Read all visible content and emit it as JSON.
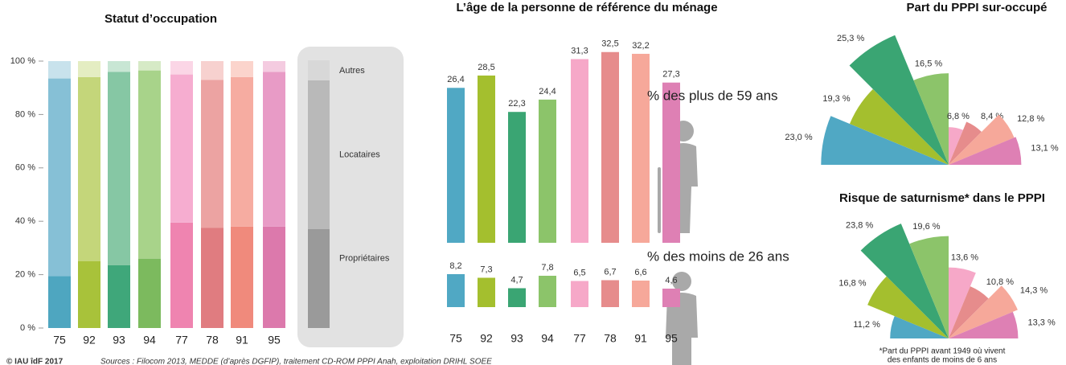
{
  "chart_data": [
    {
      "type": "stacked_bar",
      "title": "Statut d’occupation",
      "categories": [
        "75",
        "92",
        "93",
        "94",
        "77",
        "78",
        "91",
        "95"
      ],
      "ylim": [
        0,
        100
      ],
      "yticks": [
        {
          "value": 0,
          "label": "0 %"
        },
        {
          "value": 20,
          "label": "20 %"
        },
        {
          "value": 40,
          "label": "40 %"
        },
        {
          "value": 60,
          "label": "60 %"
        },
        {
          "value": 80,
          "label": "80 %"
        },
        {
          "value": 100,
          "label": "100 %"
        }
      ],
      "series": [
        {
          "name": "Propriétaires",
          "color": "#9a9a9a",
          "values": [
            19.5,
            25,
            23.5,
            26,
            39.5,
            37.5,
            38,
            38
          ],
          "colors": [
            "#4ea6c0",
            "#a8c23a",
            "#3fa77a",
            "#7cba5e",
            "#ef84b0",
            "#e07c80",
            "#f08a7c",
            "#dc79ac"
          ]
        },
        {
          "name": "Locataires",
          "color": "#b9b9b9",
          "values": [
            74,
            69,
            72.5,
            70.5,
            55.5,
            55.5,
            56,
            58
          ],
          "colors": [
            "#86c0d6",
            "#c4d67a",
            "#86c7a4",
            "#a8d38a",
            "#f6add0",
            "#eca3a2",
            "#f6aca1",
            "#e89bc6"
          ]
        },
        {
          "name": "Autres",
          "color": "#d8d8d8",
          "values": [
            6.5,
            6,
            4,
            3.5,
            5,
            7,
            6,
            4
          ],
          "colors": [
            "#c8e2ec",
            "#e4edc2",
            "#c8e6d4",
            "#d6eac6",
            "#fbd6e6",
            "#f7d1cf",
            "#fbd4cc",
            "#f4cbe0"
          ]
        }
      ]
    },
    {
      "type": "bar",
      "title": "L’âge de la personne de référence du ménage",
      "categories": [
        "75",
        "92",
        "93",
        "94",
        "77",
        "78",
        "91",
        "95"
      ],
      "colors": [
        "#50a8c4",
        "#a4bf2e",
        "#3aa573",
        "#8cc46a",
        "#f6a8c8",
        "#e68c8c",
        "#f6a89a",
        "#de80b4"
      ],
      "series": [
        {
          "name": "% des plus de 59 ans",
          "values": [
            26.4,
            28.5,
            22.3,
            24.4,
            31.3,
            32.5,
            32.2,
            27.3
          ],
          "value_labels": [
            "26,4",
            "28,5",
            "22,3",
            "24,4",
            "31,3",
            "32,5",
            "32,2",
            "27,3"
          ]
        },
        {
          "name": "% des moins de 26 ans",
          "values": [
            8.2,
            7.3,
            4.7,
            7.8,
            6.5,
            6.7,
            6.6,
            4.6
          ],
          "value_labels": [
            "8,2",
            "7,3",
            "4,7",
            "7,8",
            "6,5",
            "6,7",
            "6,6",
            "4,6"
          ]
        }
      ]
    },
    {
      "type": "polar_area",
      "title": "Part du PPPI sur-occupé",
      "values": [
        23.0,
        19.3,
        25.3,
        16.5,
        6.8,
        8.4,
        12.8,
        13.1
      ],
      "value_labels": [
        "23,0 %",
        "19,3 %",
        "25,3 %",
        "16,5 %",
        "6,8 %",
        "8,4 %",
        "12,8 %",
        "13,1 %"
      ],
      "colors": [
        "#50a8c4",
        "#a4bf2e",
        "#3aa573",
        "#8cc46a",
        "#f6a8c8",
        "#e68c8c",
        "#f6a89a",
        "#de80b4"
      ]
    },
    {
      "type": "polar_area",
      "title": "Risque de saturnisme* dans le PPPI",
      "values": [
        11.2,
        16.8,
        23.8,
        19.6,
        13.6,
        10.8,
        14.3,
        13.3
      ],
      "value_labels": [
        "11,2 %",
        "16,8 %",
        "23,8 %",
        "19,6 %",
        "13,6 %",
        "10,8 %",
        "14,3 %",
        "13,3 %"
      ],
      "colors": [
        "#50a8c4",
        "#a4bf2e",
        "#3aa573",
        "#8cc46a",
        "#f6a8c8",
        "#e68c8c",
        "#f6a89a",
        "#de80b4"
      ],
      "note": [
        "*Part du PPPI avant 1949 où vivent",
        "des enfants de moins de 6 ans"
      ]
    }
  ],
  "credit": "© IAU îdF 2017",
  "sources": "Sources : Filocom 2013, MEDDE (d’après DGFIP), traitement CD-ROM PPPI Anah, exploitation DRIHL SOEE"
}
